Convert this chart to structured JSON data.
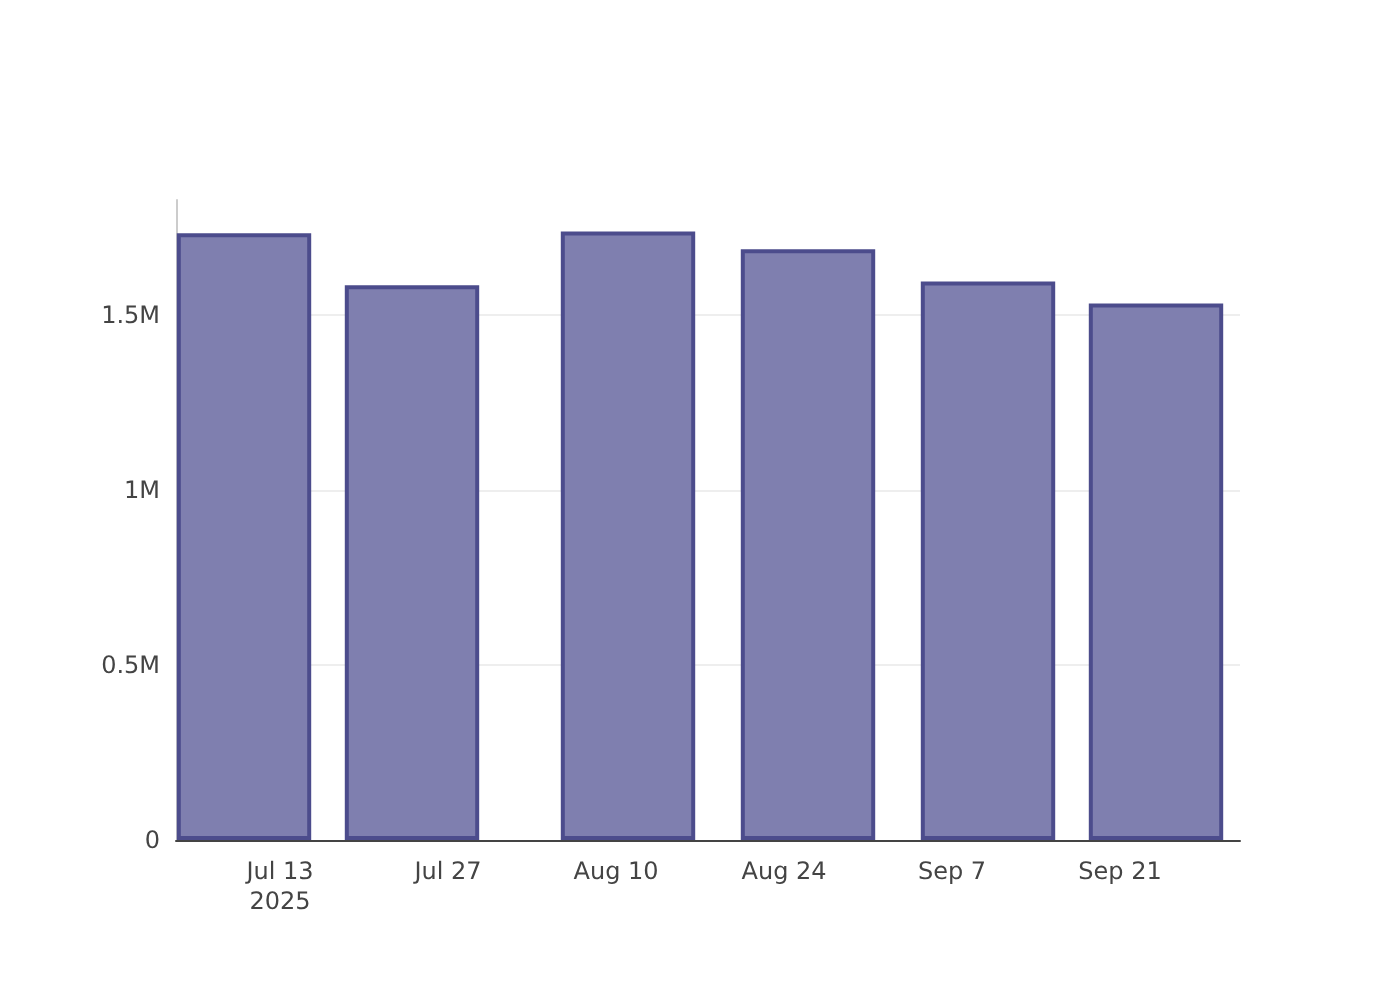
{
  "chart_data": {
    "type": "bar",
    "x": [
      "2025-07-10",
      "2025-07-24",
      "2025-08-11",
      "2025-08-26",
      "2025-09-10",
      "2025-09-24"
    ],
    "values": [
      1735000,
      1586000,
      1740000,
      1689000,
      1597000,
      1534000
    ],
    "color": "#7f7faf",
    "xlim": [
      "2025-07-04T08:00",
      "2025-10-01"
    ],
    "xticks": [
      {
        "value": "2025-07-13",
        "label": "Jul 13\n2025"
      },
      {
        "value": "2025-07-27",
        "label": "Jul 27"
      },
      {
        "value": "2025-08-10",
        "label": "Aug 10"
      },
      {
        "value": "2025-08-24",
        "label": "Aug 24"
      },
      {
        "value": "2025-09-07",
        "label": "Sep 7"
      },
      {
        "value": "2025-09-21",
        "label": "Sep 21"
      }
    ],
    "ylim": [
      0,
      1830000
    ],
    "yticks": [
      {
        "value": 0,
        "label": "0"
      },
      {
        "value": 500000,
        "label": "0.5M"
      },
      {
        "value": 1000000,
        "label": "1M"
      },
      {
        "value": 1500000,
        "label": "1.5M"
      }
    ],
    "grid": "y"
  }
}
